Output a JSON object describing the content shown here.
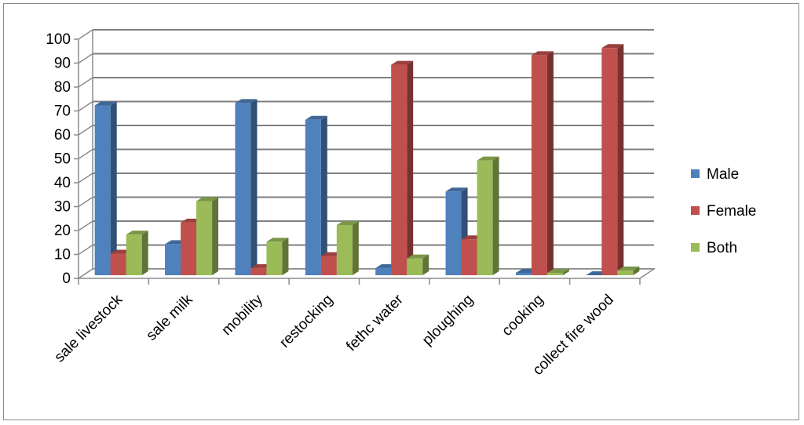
{
  "chart_data": {
    "type": "bar",
    "categories": [
      "sale livestock",
      "sale milk",
      "mobility",
      "restocking",
      "fethc water",
      "ploughing",
      "cooking",
      "collect fire wood"
    ],
    "series": [
      {
        "name": "Male",
        "color": "#4F81BD",
        "values": [
          71,
          13,
          72,
          65,
          3,
          35,
          1,
          0
        ]
      },
      {
        "name": "Female",
        "color": "#C0504D",
        "values": [
          9,
          22,
          3,
          8,
          88,
          15,
          92,
          95
        ]
      },
      {
        "name": "Both",
        "color": "#9BBB59",
        "values": [
          17,
          31,
          14,
          21,
          7,
          48,
          1,
          2
        ]
      }
    ],
    "ylim": [
      0,
      100
    ],
    "yticks": [
      0,
      10,
      20,
      30,
      40,
      50,
      60,
      70,
      80,
      90,
      100
    ],
    "grid": true,
    "style": "3d-clustered-column",
    "legend_position": "right"
  }
}
